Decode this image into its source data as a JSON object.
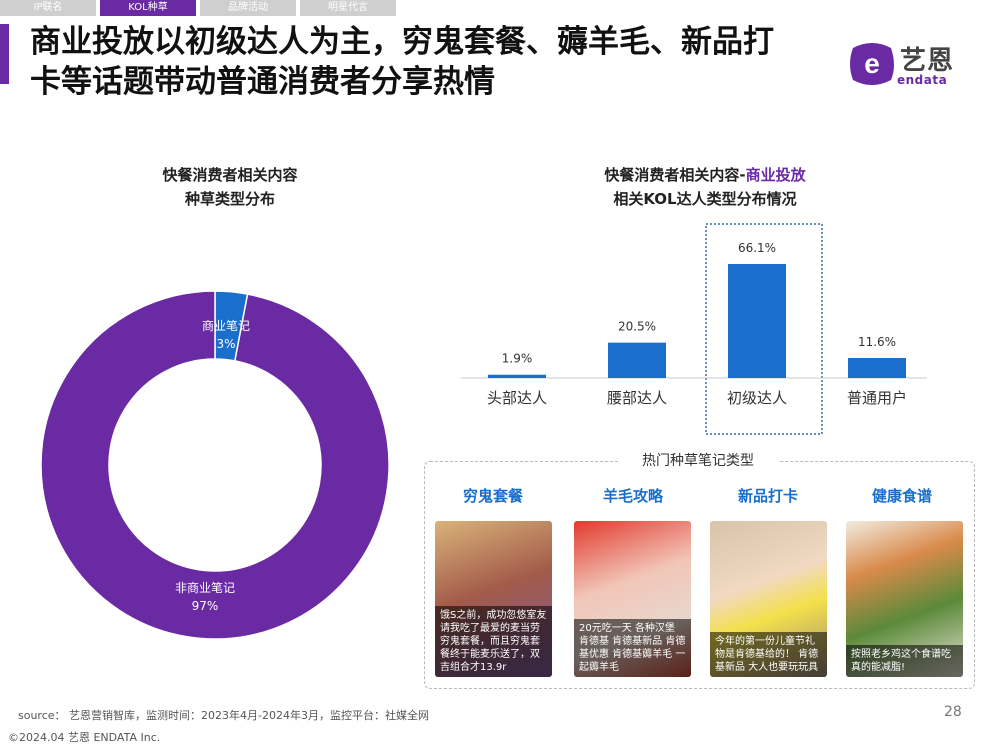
{
  "tabs": [
    {
      "label": "IP联名",
      "active": false
    },
    {
      "label": "KOL种草",
      "active": true
    },
    {
      "label": "品牌活动",
      "active": false
    },
    {
      "label": "明星代言",
      "active": false
    }
  ],
  "title": {
    "line1": "商业投放以初级达人为主，穷鬼套餐、薅羊毛、新品打",
    "line2": "卡等话题带动普通消费者分享热情"
  },
  "logo": {
    "name": "艺恩",
    "sub": "endata",
    "icon": "endata-e-icon"
  },
  "left_heading": {
    "line1": "快餐消费者相关内容",
    "line2": "种草类型分布"
  },
  "right_heading": {
    "line1_prefix": "快餐消费者相关内容-",
    "line1_accent": "商业投放",
    "line2": "相关KOL达人类型分布情况"
  },
  "colors": {
    "purple": "#6a2aa3",
    "blue": "#1a6ecc",
    "highlight_border": "#2c6fb5"
  },
  "chart_data": [
    {
      "type": "pie",
      "categories": [
        "商业笔记",
        "非商业笔记"
      ],
      "values": [
        3,
        97
      ],
      "labels": [
        "3%",
        "97%"
      ],
      "colors": [
        "#1a6ecc",
        "#6a2aa3"
      ]
    },
    {
      "type": "bar",
      "categories": [
        "头部达人",
        "腰部达人",
        "初级达人",
        "普通用户"
      ],
      "values": [
        1.9,
        20.5,
        66.1,
        11.6
      ],
      "labels": [
        "1.9%",
        "20.5%",
        "66.1%",
        "11.6%"
      ],
      "highlight": "初级达人",
      "ylim": [
        0,
        70
      ]
    }
  ],
  "notes": {
    "title": "热门种草笔记类型",
    "cards": [
      {
        "label": "穷鬼套餐",
        "caption": "饿S之前，成功忽悠室友请我吃了最爱的麦当劳穷鬼套餐，而且穷鬼套餐终于能麦乐送了，双吉组合才13.9r"
      },
      {
        "label": "羊毛攻略",
        "caption": "20元吃一天 各种汉堡 肯德基 肯德基新品 肯德基优惠 肯德基薅羊毛 一起薅羊毛"
      },
      {
        "label": "新品打卡",
        "caption": "今年的第一份儿童节礼物是肯德基给的！ 肯德基新品 大人也要玩玩具"
      },
      {
        "label": "健康食谱",
        "caption": "按照老乡鸡这个食谱吃 真的能减脂!"
      }
    ]
  },
  "footer": {
    "source": "source： 艺恩营销智库，监测时间：2023年4月-2024年3月，监控平台：社媒全网",
    "copyright": "©2024.04 艺恩 ENDATA Inc.",
    "page": "28"
  }
}
